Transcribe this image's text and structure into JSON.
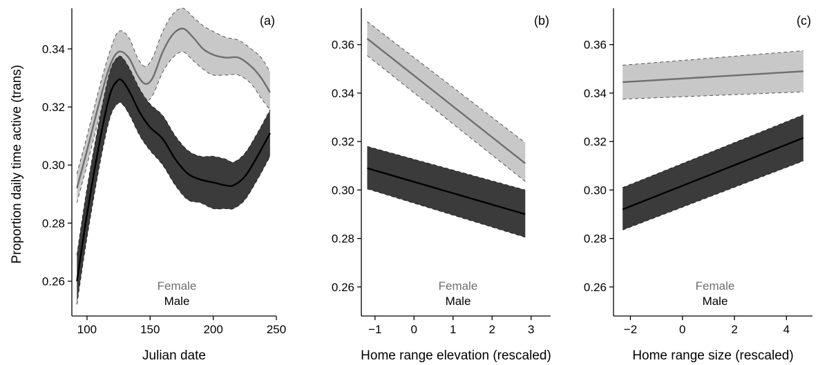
{
  "figure": {
    "ylabel": "Proportion daily time active (trans)"
  },
  "colors": {
    "female_line": "#6e6e6e",
    "female_band": "#c8c8c8",
    "male_line": "#000000",
    "male_band": "#3b3b3b"
  },
  "chart_data": [
    {
      "type": "line",
      "panel_label": "(a)",
      "xlabel": "Julian date",
      "ylabel": "Proportion daily time active (trans)",
      "xlim": [
        88,
        250
      ],
      "ylim": [
        0.248,
        0.354
      ],
      "xticks": [
        100,
        150,
        200,
        250
      ],
      "yticks": [
        0.26,
        0.28,
        0.3,
        0.32,
        0.34
      ],
      "legend": [
        "Female",
        "Male"
      ],
      "legend_position": "bottom-center",
      "series": [
        {
          "name": "Female",
          "x": [
            92,
            100,
            110,
            118,
            125,
            133,
            140,
            146,
            152,
            160,
            168,
            176,
            184,
            192,
            200,
            210,
            220,
            230,
            238,
            245
          ],
          "y": [
            0.292,
            0.305,
            0.322,
            0.334,
            0.339,
            0.337,
            0.331,
            0.328,
            0.33,
            0.339,
            0.345,
            0.347,
            0.344,
            0.34,
            0.338,
            0.337,
            0.337,
            0.334,
            0.33,
            0.325
          ],
          "lower": [
            0.287,
            0.3,
            0.317,
            0.329,
            0.334,
            0.331,
            0.325,
            0.322,
            0.324,
            0.332,
            0.337,
            0.339,
            0.336,
            0.333,
            0.331,
            0.331,
            0.331,
            0.328,
            0.323,
            0.319
          ],
          "upper": [
            0.297,
            0.31,
            0.327,
            0.339,
            0.346,
            0.344,
            0.337,
            0.334,
            0.337,
            0.346,
            0.352,
            0.354,
            0.351,
            0.348,
            0.346,
            0.344,
            0.343,
            0.34,
            0.337,
            0.332
          ]
        },
        {
          "name": "Male",
          "x": [
            92,
            100,
            110,
            118,
            124,
            128,
            134,
            142,
            150,
            160,
            170,
            180,
            190,
            200,
            210,
            216,
            225,
            235,
            245
          ],
          "y": [
            0.26,
            0.283,
            0.308,
            0.324,
            0.329,
            0.329,
            0.325,
            0.318,
            0.313,
            0.309,
            0.302,
            0.297,
            0.295,
            0.294,
            0.293,
            0.293,
            0.296,
            0.303,
            0.311
          ],
          "lower": [
            0.252,
            0.275,
            0.3,
            0.316,
            0.321,
            0.321,
            0.317,
            0.31,
            0.305,
            0.3,
            0.293,
            0.288,
            0.287,
            0.285,
            0.285,
            0.285,
            0.288,
            0.295,
            0.303
          ],
          "upper": [
            0.269,
            0.292,
            0.316,
            0.332,
            0.337,
            0.337,
            0.333,
            0.326,
            0.321,
            0.317,
            0.31,
            0.305,
            0.303,
            0.303,
            0.302,
            0.301,
            0.304,
            0.311,
            0.319
          ]
        }
      ]
    },
    {
      "type": "line",
      "panel_label": "(b)",
      "xlabel": "Home range elevation (rescaled)",
      "xlim": [
        -1.35,
        3.5
      ],
      "ylim": [
        0.248,
        0.375
      ],
      "xticks": [
        -1,
        0,
        1,
        2,
        3
      ],
      "yticks": [
        0.26,
        0.28,
        0.3,
        0.32,
        0.34,
        0.36
      ],
      "legend": [
        "Female",
        "Male"
      ],
      "legend_position": "bottom-center",
      "series": [
        {
          "name": "Female",
          "x": [
            -1.2,
            2.85
          ],
          "y": [
            0.3625,
            0.311
          ],
          "lower": [
            0.3555,
            0.3035
          ],
          "upper": [
            0.3695,
            0.3195
          ]
        },
        {
          "name": "Male",
          "x": [
            -1.2,
            2.85
          ],
          "y": [
            0.309,
            0.29
          ],
          "lower": [
            0.3005,
            0.2805
          ],
          "upper": [
            0.318,
            0.3
          ]
        }
      ]
    },
    {
      "type": "line",
      "panel_label": "(c)",
      "xlabel": "Home range size (rescaled)",
      "xlim": [
        -2.65,
        5.0
      ],
      "ylim": [
        0.248,
        0.375
      ],
      "xticks": [
        -2,
        0,
        2,
        4
      ],
      "yticks": [
        0.26,
        0.28,
        0.3,
        0.32,
        0.34,
        0.36
      ],
      "legend": [
        "Female",
        "Male"
      ],
      "legend_position": "bottom-center",
      "series": [
        {
          "name": "Female",
          "x": [
            -2.3,
            4.65
          ],
          "y": [
            0.3445,
            0.349
          ],
          "lower": [
            0.3375,
            0.3405
          ],
          "upper": [
            0.3515,
            0.3575
          ]
        },
        {
          "name": "Male",
          "x": [
            -2.3,
            4.65
          ],
          "y": [
            0.292,
            0.3215
          ],
          "lower": [
            0.2835,
            0.312
          ],
          "upper": [
            0.301,
            0.331
          ]
        }
      ]
    }
  ]
}
